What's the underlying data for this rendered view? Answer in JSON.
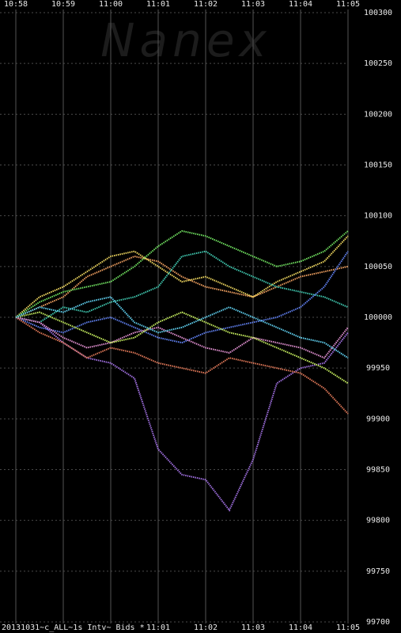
{
  "chart_data": {
    "type": "line",
    "watermark": "Nanex",
    "caption": "20131031~c_ALL~1s Intv~ Bids *",
    "categories": [
      "10:58",
      null,
      "10:59",
      null,
      "11:00",
      null,
      "11:01",
      null,
      "11:02",
      null,
      "11:03",
      null,
      "11:04",
      null,
      "11:05"
    ],
    "ylim": [
      99700,
      100300
    ],
    "yticks": [
      99700,
      99750,
      99800,
      99850,
      99900,
      99950,
      100000,
      100050,
      100100,
      100150,
      100200,
      100250,
      100300
    ],
    "grid": true,
    "series": [
      {
        "color": "#f0a060",
        "values": [
          100000,
          100010,
          100020,
          100040,
          100050,
          100060,
          100055,
          100040,
          100030,
          100025,
          100020,
          100030,
          100040,
          100045,
          100050
        ]
      },
      {
        "color": "#f0d860",
        "values": [
          100000,
          100020,
          100030,
          100045,
          100060,
          100065,
          100050,
          100035,
          100040,
          100030,
          100020,
          100035,
          100045,
          100055,
          100080
        ]
      },
      {
        "color": "#70e060",
        "values": [
          100000,
          100015,
          100025,
          100030,
          100035,
          100050,
          100070,
          100085,
          100080,
          100070,
          100060,
          100050,
          100055,
          100065,
          100085
        ]
      },
      {
        "color": "#40c8b0",
        "values": [
          100000,
          99995,
          100010,
          100005,
          100015,
          100020,
          100030,
          100060,
          100065,
          100050,
          100040,
          100030,
          100025,
          100020,
          100010
        ]
      },
      {
        "color": "#6080f0",
        "values": [
          100000,
          99990,
          99985,
          99995,
          100000,
          99990,
          99980,
          99975,
          99985,
          99990,
          99995,
          100000,
          100010,
          100030,
          100065
        ]
      },
      {
        "color": "#a070e0",
        "values": [
          100000,
          99995,
          99975,
          99960,
          99955,
          99940,
          99870,
          99845,
          99840,
          99810,
          99860,
          99935,
          99950,
          99955,
          99985
        ]
      },
      {
        "color": "#e07858",
        "values": [
          100000,
          99985,
          99975,
          99960,
          99970,
          99965,
          99955,
          99950,
          99945,
          99960,
          99955,
          99950,
          99945,
          99930,
          99905
        ]
      },
      {
        "color": "#e090d0",
        "values": [
          100000,
          99995,
          99980,
          99970,
          99975,
          99985,
          99990,
          99980,
          99970,
          99965,
          99980,
          99975,
          99970,
          99960,
          99990
        ]
      },
      {
        "color": "#c8f060",
        "values": [
          100000,
          100005,
          99995,
          99985,
          99975,
          99980,
          99995,
          100005,
          99995,
          99985,
          99980,
          99970,
          99960,
          99950,
          99935
        ]
      },
      {
        "color": "#60d0f0",
        "values": [
          100000,
          100010,
          100005,
          100015,
          100020,
          99995,
          99985,
          99990,
          100000,
          100010,
          100000,
          99990,
          99980,
          99975,
          99960
        ]
      }
    ]
  }
}
